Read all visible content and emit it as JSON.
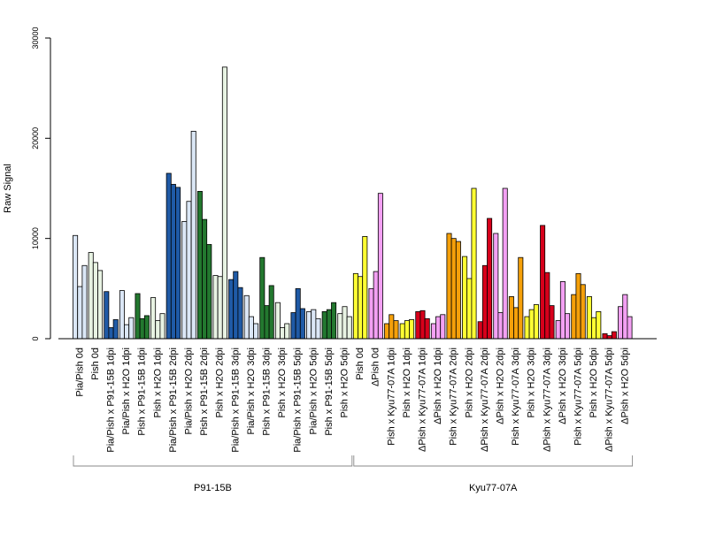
{
  "chart_data": {
    "type": "bar",
    "title": "",
    "xlabel": "",
    "ylabel": "Raw Signal",
    "ylim": [
      0,
      30000
    ],
    "yticks": [
      0,
      10000,
      20000,
      30000
    ],
    "grid": false,
    "legend": "none",
    "colors": {
      "light_blue": "#dbe7f6",
      "dark_blue": "#1f5aa6",
      "light_green": "#e8f3e3",
      "dark_green": "#23782f",
      "yellow": "#ffff33",
      "orange": "#f5a00a",
      "red": "#d7001b",
      "violet": "#f3a0f3"
    },
    "categories": [
      "Pia/Pish 0d",
      "Pish 0d",
      "Pia/Pish x P91-15B 1dpi",
      "Pia/Pish x H2O 1dpi",
      "Pish x P91-15B 1dpi",
      "Pish x H2O 1dpi",
      "Pia/Pish x P91-15B 2dpi",
      "Pia/Pish x H2O 2dpi",
      "Pish x P91-15B 2dpi",
      "Pish x H2O 2dpi",
      "Pia/Pish x P91-15B 3dpi",
      "Pia/Pish x H2O 3dpi",
      "Pish x P91-15B 3dpi",
      "Pish x H2O 3dpi",
      "Pia/Pish x P91-15B 5dpi",
      "Pia/Pish x H2O 5dpi",
      "Pish x P91-15B 5dpi",
      "Pish x H2O 5dpi",
      "Pish 0d",
      "ΔPish 0d",
      "Pish x Kyu77-07A 1dpi",
      "Pish x H2O 1dpi",
      "ΔPish x Kyu77-07A 1dpi",
      "ΔPish x H2O 1dpi",
      "Pish x Kyu77-07A 2dpi",
      "Pish x H2O 2dpi",
      "ΔPish x Kyu77-07A 2dpi",
      "ΔPish x H2O 2dpi",
      "Pish x Kyu77-07A 3dpi",
      "Pish x H2O 3dpi",
      "ΔPish x Kyu77-07A 3dpi",
      "ΔPish x H2O 3dpi",
      "Pish x Kyu77-07A 5dpi",
      "Pish x H2O 5dpi",
      "ΔPish x Kyu77-07A 5dpi",
      "ΔPish x H2O 5dpi"
    ],
    "bar_color_keys": [
      "light_blue",
      "light_green",
      "dark_blue",
      "light_blue",
      "dark_green",
      "light_green",
      "dark_blue",
      "light_blue",
      "dark_green",
      "light_green",
      "dark_blue",
      "light_blue",
      "dark_green",
      "light_green",
      "dark_blue",
      "light_blue",
      "dark_green",
      "light_green",
      "yellow",
      "violet",
      "orange",
      "yellow",
      "red",
      "violet",
      "orange",
      "yellow",
      "red",
      "violet",
      "orange",
      "yellow",
      "red",
      "violet",
      "orange",
      "yellow",
      "red",
      "violet"
    ],
    "values": [
      [
        10300,
        5200,
        7300
      ],
      [
        8600,
        7600,
        6800
      ],
      [
        4700,
        1100,
        1900
      ],
      [
        4800,
        1400,
        2100
      ],
      [
        4500,
        2000,
        2300
      ],
      [
        4100,
        1800,
        2500
      ],
      [
        16500,
        15400,
        15100
      ],
      [
        11700,
        13700,
        20700
      ],
      [
        14700,
        11900,
        9400
      ],
      [
        6300,
        6200,
        27100
      ],
      [
        5900,
        6700,
        5100
      ],
      [
        4300,
        2200,
        1500
      ],
      [
        8100,
        3300,
        5300
      ],
      [
        3600,
        1100,
        1500
      ],
      [
        2600,
        5000,
        3000
      ],
      [
        2700,
        2900,
        2000
      ],
      [
        2700,
        2900,
        3600
      ],
      [
        2500,
        3200,
        2200
      ],
      [
        6500,
        6200,
        10200
      ],
      [
        5000,
        6700,
        14500
      ],
      [
        1500,
        2400,
        1800
      ],
      [
        1500,
        1800,
        1900
      ],
      [
        2700,
        2800,
        2000
      ],
      [
        1500,
        2200,
        2400
      ],
      [
        10500,
        10000,
        9700
      ],
      [
        8200,
        6000,
        15000
      ],
      [
        1700,
        7300,
        12000
      ],
      [
        10500,
        2600,
        15000
      ],
      [
        4200,
        3100,
        8100
      ],
      [
        2200,
        2900,
        3400
      ],
      [
        11300,
        6600,
        3300
      ],
      [
        1800,
        5700,
        2500
      ],
      [
        4400,
        6500,
        5400
      ],
      [
        4200,
        2100,
        2700
      ],
      [
        500,
        300,
        700
      ],
      [
        3200,
        4400,
        2200
      ]
    ],
    "groups": [
      {
        "label": "P91-15B",
        "start": 0,
        "end": 17
      },
      {
        "label": "Kyu77-07A",
        "start": 18,
        "end": 35
      }
    ]
  }
}
